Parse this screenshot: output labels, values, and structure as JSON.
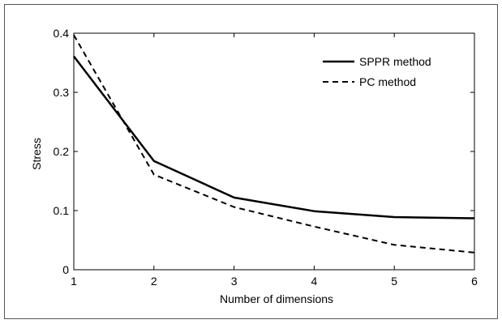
{
  "chart_data": {
    "type": "line",
    "x": [
      1,
      2,
      3,
      4,
      5,
      6
    ],
    "series": [
      {
        "name": "SPPR method",
        "values": [
          0.361,
          0.184,
          0.122,
          0.099,
          0.089,
          0.087
        ],
        "style": "solid"
      },
      {
        "name": "PC method",
        "values": [
          0.397,
          0.161,
          0.106,
          0.073,
          0.042,
          0.029
        ],
        "style": "dashed"
      }
    ],
    "xlabel": "Number of dimensions",
    "ylabel": "Stress",
    "xlim": [
      1,
      6
    ],
    "ylim": [
      0,
      0.4
    ],
    "xticks": [
      "1",
      "2",
      "3",
      "4",
      "5",
      "6"
    ],
    "yticks": [
      "0",
      "0.1",
      "0.2",
      "0.3",
      "0.4"
    ],
    "grid": false,
    "legend_position": "top-right",
    "colors": {
      "line": "#000000",
      "frame": "#000000",
      "background": "#ffffff"
    }
  }
}
